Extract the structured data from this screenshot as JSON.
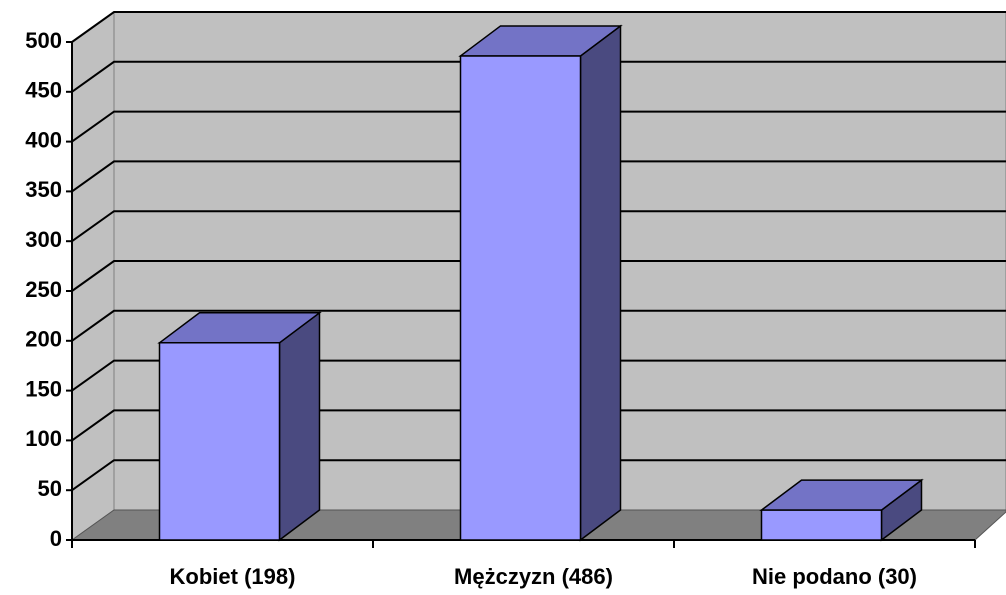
{
  "chart_data": {
    "type": "bar3d",
    "categories": [
      "Kobiet (198)",
      "Mężczyzn (486)",
      "Nie podano (30)"
    ],
    "values": [
      198,
      486,
      30
    ],
    "color": "#9999ff",
    "ylim": [
      0,
      500
    ],
    "yticks": [
      0,
      50,
      100,
      150,
      200,
      250,
      300,
      350,
      400,
      450,
      500
    ],
    "grid": true
  }
}
